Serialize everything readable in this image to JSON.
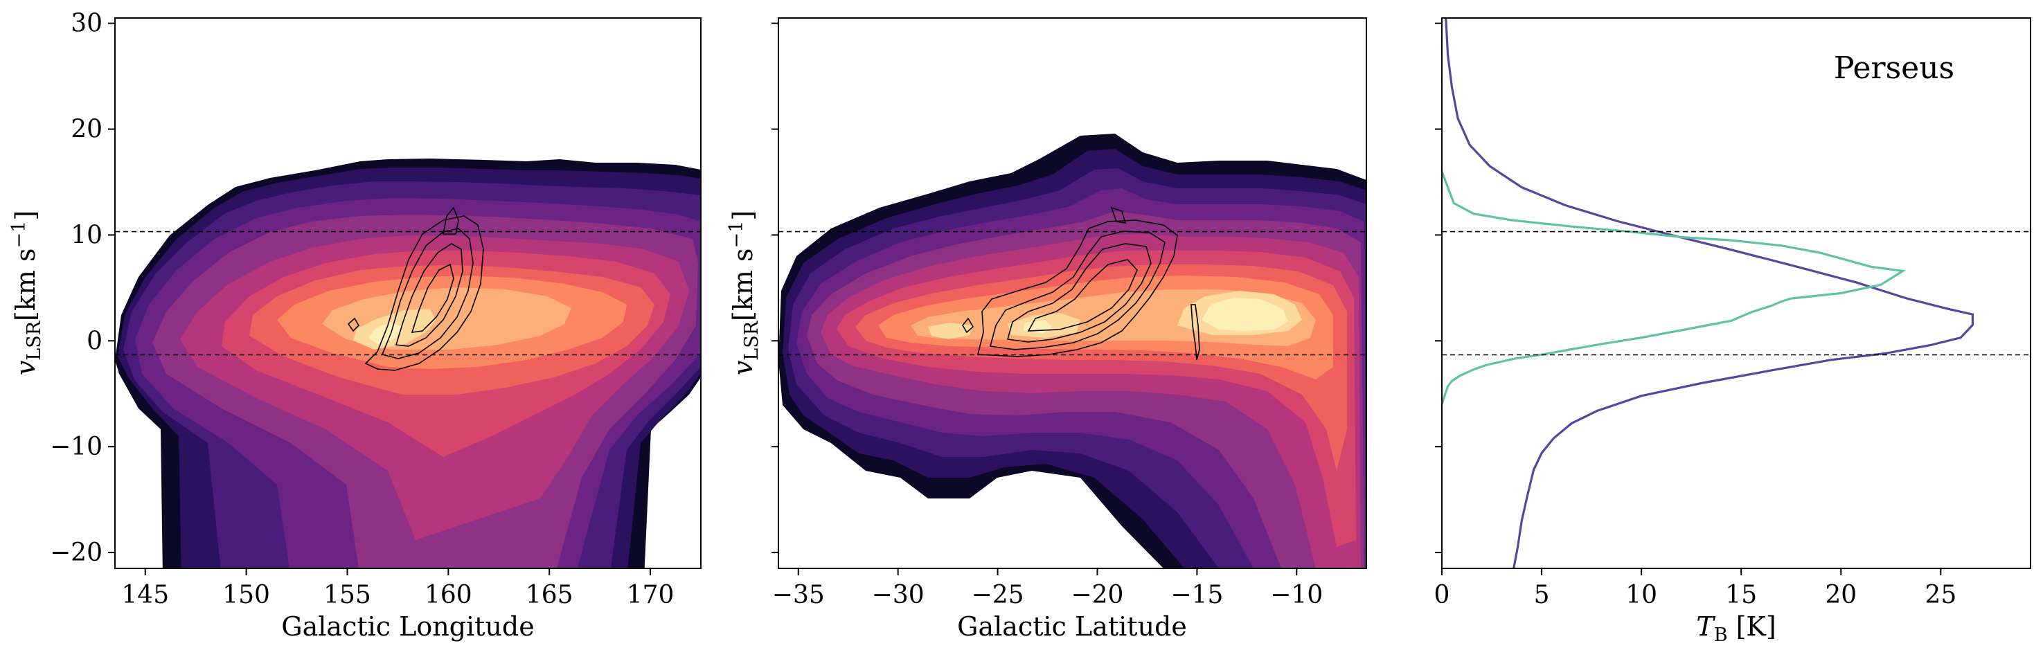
{
  "chart_data": [
    {
      "type": "heatmap",
      "panel": "longitude-velocity",
      "xlabel": "Galactic Longitude",
      "ylabel_main": "v",
      "ylabel_sub": "LSR",
      "ylabel_units": "[km s",
      "ylabel_exp": "−1",
      "ylabel_close": "]",
      "xlim": [
        143.5,
        172.5
      ],
      "ylim": [
        -21.5,
        30.5
      ],
      "xticks": [
        145,
        150,
        155,
        160,
        165,
        170
      ],
      "xtick_labels": [
        "145",
        "150",
        "155",
        "160",
        "165",
        "170"
      ],
      "yticks": [
        -20,
        -10,
        0,
        10,
        20,
        30
      ],
      "ytick_labels": [
        "−20",
        "−10",
        "0",
        "10",
        "20",
        "30"
      ],
      "colormap": "magma",
      "contour_color": "#000000",
      "reference_lines_v": [
        10.5,
        -1.2
      ]
    },
    {
      "type": "heatmap",
      "panel": "latitude-velocity",
      "xlabel": "Galactic Latitude",
      "ylabel_main": "v",
      "ylabel_sub": "LSR",
      "ylabel_units": "[km s",
      "ylabel_exp": "−1",
      "ylabel_close": "]",
      "xlim": [
        -36,
        -6.5
      ],
      "ylim": [
        -21.5,
        30.5
      ],
      "xticks": [
        -35,
        -30,
        -25,
        -20,
        -15,
        -10
      ],
      "xtick_labels": [
        "−35",
        "−30",
        "−25",
        "−20",
        "−15",
        "−10"
      ],
      "yticks": [
        -20,
        -10,
        0,
        10,
        20,
        30
      ],
      "colormap": "magma",
      "contour_color": "#000000",
      "reference_lines_v": [
        10.5,
        -1.2
      ]
    },
    {
      "type": "line",
      "panel": "spectrum",
      "annotation": "Perseus",
      "xlabel_main": "T",
      "xlabel_sub": "B",
      "xlabel_units": " [K]",
      "xlim": [
        0,
        29.5
      ],
      "ylim": [
        -21.5,
        30.5
      ],
      "xticks": [
        0,
        5,
        10,
        15,
        20,
        25
      ],
      "xtick_labels": [
        "0",
        "5",
        "10",
        "15",
        "20",
        "25"
      ],
      "yticks": [
        -20,
        -10,
        0,
        10,
        20,
        30
      ],
      "reference_lines_v": [
        10.5,
        -1.2
      ],
      "series": [
        {
          "color": "#5746a0",
          "points": [
            [
              0.2,
              30.5
            ],
            [
              0.3,
              27
            ],
            [
              0.5,
              24
            ],
            [
              0.8,
              21
            ],
            [
              1.4,
              18.5
            ],
            [
              2.4,
              16.5
            ],
            [
              4,
              14.5
            ],
            [
              6.2,
              12.8
            ],
            [
              8.8,
              11.3
            ],
            [
              11.5,
              10
            ],
            [
              14.5,
              8.6
            ],
            [
              17.8,
              7
            ],
            [
              20.8,
              5.5
            ],
            [
              23.3,
              4
            ],
            [
              25.4,
              3
            ],
            [
              26.6,
              2.5
            ],
            [
              26.6,
              1.5
            ],
            [
              26,
              0.3
            ],
            [
              24.5,
              -0.4
            ],
            [
              22.2,
              -1.2
            ],
            [
              19.5,
              -1.8
            ],
            [
              16.5,
              -2.8
            ],
            [
              13,
              -4
            ],
            [
              10,
              -5.2
            ],
            [
              7.8,
              -6.6
            ],
            [
              6.5,
              -7.8
            ],
            [
              5.6,
              -9.2
            ],
            [
              5,
              -10.6
            ],
            [
              4.6,
              -12.2
            ],
            [
              4.3,
              -14.5
            ],
            [
              4,
              -17
            ],
            [
              3.8,
              -19.5
            ],
            [
              3.6,
              -21.5
            ]
          ]
        },
        {
          "color": "#5fc3a1",
          "points": [
            [
              0,
              16
            ],
            [
              0.1,
              15.5
            ],
            [
              0.3,
              14.5
            ],
            [
              0.6,
              13
            ],
            [
              1.6,
              12
            ],
            [
              3.5,
              11.4
            ],
            [
              6.5,
              10.8
            ],
            [
              9.5,
              10.3
            ],
            [
              12,
              9.8
            ],
            [
              14.5,
              9.5
            ],
            [
              17,
              9
            ],
            [
              19,
              8.3
            ],
            [
              21.5,
              7
            ],
            [
              23.1,
              6.6
            ],
            [
              22,
              5.3
            ],
            [
              20,
              4.5
            ],
            [
              17.5,
              4
            ],
            [
              17,
              3.7
            ],
            [
              16.5,
              3.3
            ],
            [
              15.5,
              2.7
            ],
            [
              14.5,
              1.9
            ],
            [
              12,
              1
            ],
            [
              10,
              0.3
            ],
            [
              8,
              -0.3
            ],
            [
              6.5,
              -0.8
            ],
            [
              5,
              -1.3
            ],
            [
              3.6,
              -1.7
            ],
            [
              2.2,
              -2.3
            ],
            [
              1.6,
              -2.7
            ],
            [
              0.9,
              -3.3
            ],
            [
              0.5,
              -3.8
            ],
            [
              0.3,
              -4.3
            ],
            [
              0.1,
              -5.4
            ],
            [
              0,
              -6
            ]
          ]
        }
      ]
    }
  ]
}
